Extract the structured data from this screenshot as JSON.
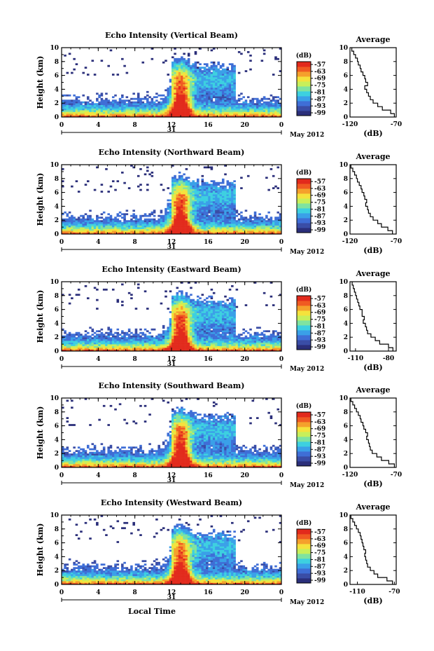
{
  "common": {
    "xlabel": "Local Time",
    "ylabel": "Height (km)",
    "date_day": "31",
    "date_month": "May 2012",
    "colorbar_unit": "(dB)",
    "colorbar_ticks": [
      "-57",
      "-63",
      "-69",
      "-75",
      "-81",
      "-87",
      "-93",
      "-99"
    ],
    "colorbar_colors": [
      "#2b2f7a",
      "#3a4da6",
      "#3f6ed6",
      "#3aa0e8",
      "#3dd0e0",
      "#7fe3a0",
      "#c8ef5a",
      "#f5e23c",
      "#f5a02c",
      "#f05a22",
      "#e22a1c"
    ],
    "avg_title": "Average",
    "avg_xlabel": "(dB)"
  },
  "chart_data": [
    {
      "type": "heatmap",
      "title": "Echo Intensity (Vertical Beam)",
      "x_ticks": [
        "0",
        "4",
        "8",
        "12",
        "16",
        "20",
        "0"
      ],
      "xlim": [
        0,
        24
      ],
      "y_ticks": [
        "0",
        "2",
        "4",
        "6",
        "8",
        "10"
      ],
      "ylim": [
        0,
        10
      ],
      "avg_profile": {
        "x_ticks": [
          "-120",
          "-70"
        ],
        "xlim": [
          -120,
          -70
        ],
        "height_km": [
          0,
          0.5,
          1,
          1.5,
          2,
          2.5,
          3,
          3.5,
          4,
          4.5,
          5,
          5.5,
          6,
          6.5,
          7,
          7.5,
          8,
          8.5,
          9,
          9.5
        ],
        "db": [
          -72,
          -76,
          -85,
          -90,
          -95,
          -98,
          -100,
          -102,
          -104,
          -101,
          -103,
          -104,
          -106,
          -108,
          -109,
          -111,
          -112,
          -114,
          -116,
          -118
        ]
      }
    },
    {
      "type": "heatmap",
      "title": "Echo Intensity (Northward Beam)",
      "x_ticks": [
        "0",
        "4",
        "8",
        "12",
        "16",
        "20",
        "0"
      ],
      "xlim": [
        0,
        24
      ],
      "y_ticks": [
        "0",
        "2",
        "4",
        "6",
        "8",
        "10"
      ],
      "ylim": [
        0,
        10
      ],
      "avg_profile": {
        "x_ticks": [
          "-120",
          "-70"
        ],
        "xlim": [
          -120,
          -70
        ],
        "height_km": [
          0,
          0.5,
          1,
          1.5,
          2,
          2.5,
          3,
          3.5,
          4,
          4.5,
          5,
          5.5,
          6,
          6.5,
          7,
          7.5,
          8,
          8.5,
          9,
          9.5
        ],
        "db": [
          -74,
          -79,
          -86,
          -90,
          -95,
          -98,
          -100,
          -101,
          -103,
          -102,
          -104,
          -105,
          -107,
          -108,
          -110,
          -112,
          -113,
          -115,
          -117,
          -119
        ]
      }
    },
    {
      "type": "heatmap",
      "title": "Echo Intensity (Eastward Beam)",
      "x_ticks": [
        "0",
        "4",
        "8",
        "12",
        "16",
        "20",
        "0"
      ],
      "xlim": [
        0,
        24
      ],
      "y_ticks": [
        "0",
        "2",
        "4",
        "6",
        "8",
        "10"
      ],
      "ylim": [
        0,
        10
      ],
      "avg_profile": {
        "x_ticks": [
          "-110",
          "-80"
        ],
        "xlim": [
          -115,
          -73
        ],
        "height_km": [
          0,
          0.5,
          1,
          1.5,
          2,
          2.5,
          3,
          3.5,
          4,
          4.5,
          5,
          5.5,
          6,
          6.5,
          7,
          7.5,
          8,
          8.5,
          9,
          9.5
        ],
        "db": [
          -76,
          -80,
          -88,
          -92,
          -96,
          -99,
          -100,
          -101,
          -103,
          -102,
          -104,
          -104,
          -106,
          -107,
          -108,
          -109,
          -110,
          -111,
          -112,
          -113
        ]
      }
    },
    {
      "type": "heatmap",
      "title": "Echo Intensity (Southward Beam)",
      "x_ticks": [
        "0",
        "4",
        "8",
        "12",
        "16",
        "20",
        "0"
      ],
      "xlim": [
        0,
        24
      ],
      "y_ticks": [
        "0",
        "2",
        "4",
        "6",
        "8",
        "10"
      ],
      "ylim": [
        0,
        10
      ],
      "avg_profile": {
        "x_ticks": [
          "-120",
          "-70"
        ],
        "xlim": [
          -120,
          -70
        ],
        "height_km": [
          0,
          0.5,
          1,
          1.5,
          2,
          2.5,
          3,
          3.5,
          4,
          4.5,
          5,
          5.5,
          6,
          6.5,
          7,
          7.5,
          8,
          8.5,
          9,
          9.5
        ],
        "db": [
          -72,
          -78,
          -86,
          -91,
          -96,
          -98,
          -99,
          -100,
          -102,
          -101,
          -103,
          -105,
          -106,
          -108,
          -109,
          -111,
          -113,
          -115,
          -117,
          -119
        ]
      }
    },
    {
      "type": "heatmap",
      "title": "Echo Intensity (Westward Beam)",
      "x_ticks": [
        "0",
        "4",
        "8",
        "12",
        "16",
        "20",
        "0"
      ],
      "xlim": [
        0,
        24
      ],
      "y_ticks": [
        "0",
        "2",
        "4",
        "6",
        "8",
        "10"
      ],
      "ylim": [
        0,
        10
      ],
      "avg_profile": {
        "x_ticks": [
          "-110",
          "-70"
        ],
        "xlim": [
          -118,
          -68
        ],
        "height_km": [
          0,
          0.5,
          1,
          1.5,
          2,
          2.5,
          3,
          3.5,
          4,
          4.5,
          5,
          5.5,
          6,
          6.5,
          7,
          7.5,
          8,
          8.5,
          9,
          9.5
        ],
        "db": [
          -72,
          -78,
          -88,
          -92,
          -96,
          -99,
          -100,
          -101,
          -102,
          -101,
          -103,
          -104,
          -105,
          -106,
          -107,
          -109,
          -111,
          -113,
          -115,
          -117
        ]
      }
    }
  ]
}
